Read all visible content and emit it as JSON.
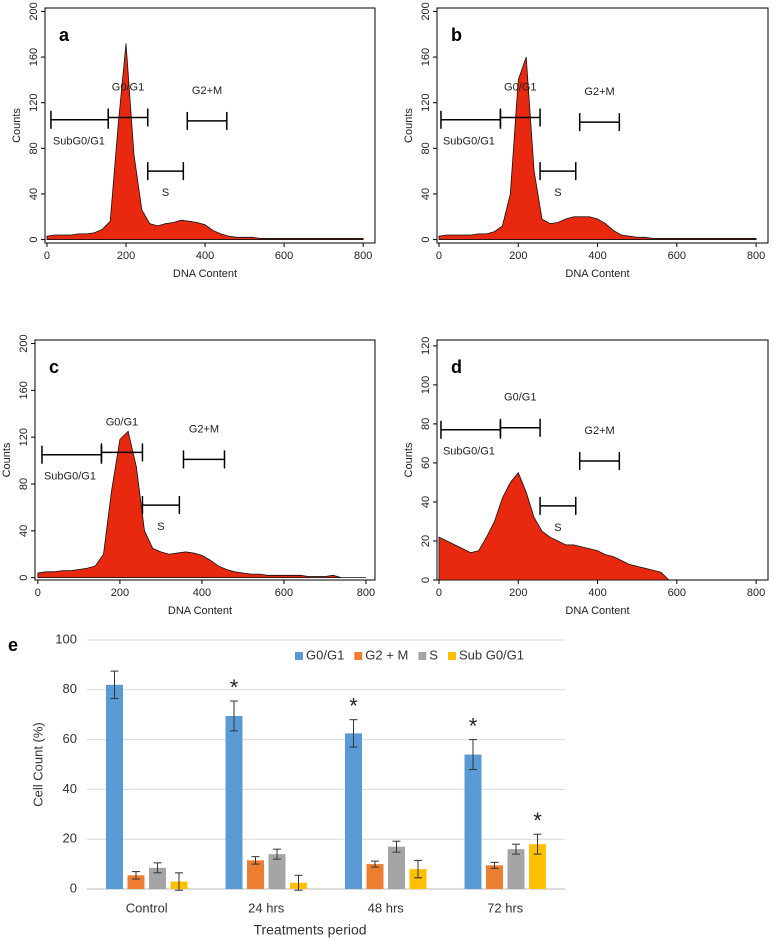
{
  "chart_data": [
    {
      "type": "area",
      "label": "a",
      "x_label": "DNA Content",
      "y_label": "Counts",
      "color": "#e8280f",
      "x": [
        0,
        20,
        40,
        60,
        80,
        100,
        120,
        140,
        160,
        180,
        200,
        220,
        240,
        260,
        280,
        300,
        320,
        340,
        360,
        380,
        400,
        420,
        440,
        460,
        480,
        500,
        520,
        540,
        560,
        580,
        600,
        620,
        640,
        660,
        680,
        700,
        720,
        740,
        760,
        780,
        800
      ],
      "values": [
        3,
        4,
        4,
        4,
        5,
        5,
        6,
        9,
        16,
        100,
        172,
        75,
        26,
        14,
        12,
        14,
        15,
        17,
        16,
        15,
        13,
        8,
        5,
        3,
        2,
        2,
        2,
        1,
        1,
        1,
        1,
        1,
        1,
        1,
        1,
        1,
        1,
        1,
        1,
        1,
        1
      ],
      "xlim": [
        -5,
        830
      ],
      "ylim": [
        -3,
        203
      ],
      "xticks": [
        0,
        200,
        400,
        600,
        800
      ],
      "yticks": [
        0,
        40,
        80,
        120,
        160,
        200
      ],
      "gates": [
        {
          "label": "SubG0/G1",
          "range": [
            10,
            155
          ],
          "level": 105,
          "label_position": "below"
        },
        {
          "label": "G0/G1",
          "range": [
            155,
            255
          ],
          "level": 107,
          "label_position": "above"
        },
        {
          "label": "S",
          "range": [
            255,
            345
          ],
          "level": 60,
          "label_position": "below"
        },
        {
          "label": "G2+M",
          "range": [
            355,
            455
          ],
          "level": 104,
          "label_position": "above"
        }
      ]
    },
    {
      "type": "area",
      "label": "b",
      "x_label": "DNA Content",
      "y_label": "Counts",
      "color": "#e8280f",
      "x": [
        0,
        20,
        40,
        60,
        80,
        100,
        120,
        140,
        160,
        180,
        200,
        220,
        240,
        260,
        280,
        300,
        320,
        340,
        360,
        380,
        400,
        420,
        440,
        460,
        480,
        500,
        520,
        540,
        560,
        580,
        600,
        620,
        640,
        660,
        680,
        700,
        720,
        740,
        760,
        780,
        800
      ],
      "values": [
        3,
        4,
        4,
        4,
        4,
        5,
        5,
        7,
        12,
        40,
        140,
        160,
        60,
        18,
        14,
        15,
        18,
        20,
        20,
        20,
        18,
        14,
        8,
        4,
        3,
        2,
        2,
        1,
        1,
        1,
        1,
        1,
        1,
        1,
        1,
        1,
        1,
        1,
        1,
        1,
        1
      ],
      "xlim": [
        -5,
        830
      ],
      "ylim": [
        -3,
        203
      ],
      "xticks": [
        0,
        200,
        400,
        600,
        800
      ],
      "yticks": [
        0,
        40,
        80,
        120,
        160,
        200
      ],
      "gates": [
        {
          "label": "SubG0/G1",
          "range": [
            5,
            155
          ],
          "level": 105,
          "label_position": "below"
        },
        {
          "label": "G0/G1",
          "range": [
            155,
            255
          ],
          "level": 107,
          "label_position": "above"
        },
        {
          "label": "S",
          "range": [
            255,
            345
          ],
          "level": 60,
          "label_position": "below"
        },
        {
          "label": "G2+M",
          "range": [
            355,
            455
          ],
          "level": 103,
          "label_position": "above"
        }
      ]
    },
    {
      "type": "area",
      "label": "c",
      "x_label": "DNA Content",
      "y_label": "Counts",
      "color": "#e8280f",
      "x": [
        0,
        20,
        40,
        60,
        80,
        100,
        120,
        140,
        160,
        180,
        200,
        220,
        240,
        260,
        280,
        300,
        320,
        340,
        360,
        380,
        400,
        420,
        440,
        460,
        480,
        500,
        520,
        540,
        560,
        580,
        600,
        620,
        640,
        660,
        680,
        700,
        720,
        740,
        760,
        780,
        800
      ],
      "values": [
        4,
        5,
        5,
        6,
        6,
        7,
        8,
        10,
        20,
        75,
        118,
        125,
        95,
        40,
        25,
        22,
        20,
        21,
        22,
        21,
        19,
        15,
        10,
        7,
        5,
        4,
        3,
        3,
        2,
        2,
        2,
        2,
        2,
        1,
        1,
        1,
        2,
        0,
        0,
        0,
        0
      ],
      "xlim": [
        -7,
        822
      ],
      "ylim": [
        -2,
        203
      ],
      "xticks": [
        0,
        200,
        400,
        600,
        800
      ],
      "yticks": [
        0,
        40,
        80,
        120,
        160,
        200
      ],
      "gates": [
        {
          "label": "SubG0/G1",
          "range": [
            10,
            155
          ],
          "level": 105,
          "label_position": "below"
        },
        {
          "label": "G0/G1",
          "range": [
            155,
            255
          ],
          "level": 107,
          "label_position": "above"
        },
        {
          "label": "S",
          "range": [
            255,
            345
          ],
          "level": 62,
          "label_position": "below"
        },
        {
          "label": "G2+M",
          "range": [
            355,
            455
          ],
          "level": 101,
          "label_position": "above"
        }
      ]
    },
    {
      "type": "area",
      "label": "d",
      "x_label": "DNA Content",
      "y_label": "Counts",
      "color": "#e8280f",
      "x": [
        0,
        20,
        40,
        60,
        80,
        100,
        120,
        140,
        160,
        180,
        200,
        220,
        240,
        260,
        280,
        300,
        320,
        340,
        360,
        380,
        400,
        420,
        440,
        460,
        480,
        500,
        520,
        540,
        560,
        580
      ],
      "values": [
        22,
        20,
        18,
        16,
        14,
        15,
        22,
        30,
        42,
        50,
        55,
        45,
        32,
        25,
        22,
        20,
        18,
        18,
        17,
        16,
        15,
        13,
        12,
        10,
        8,
        7,
        6,
        5,
        4,
        0
      ],
      "xlim": [
        -5,
        830
      ],
      "ylim": [
        0,
        123
      ],
      "xticks": [
        0,
        200,
        400,
        600,
        800
      ],
      "yticks": [
        0,
        20,
        40,
        60,
        80,
        100,
        120
      ],
      "gates": [
        {
          "label": "SubG0/G1",
          "range": [
            5,
            155
          ],
          "level": 77,
          "label_position": "below"
        },
        {
          "label": "G0/G1",
          "range": [
            155,
            255
          ],
          "level": 78,
          "label_position": "above"
        },
        {
          "label": "S",
          "range": [
            255,
            345
          ],
          "level": 38,
          "label_position": "below"
        },
        {
          "label": "G2+M",
          "range": [
            355,
            455
          ],
          "level": 61,
          "label_position": "above"
        }
      ]
    },
    {
      "type": "bar",
      "label": "e",
      "x_label": "Treatments period",
      "y_label": "Cell Count (%)",
      "categories": [
        "Control",
        "24 hrs",
        "48 hrs",
        "72 hrs"
      ],
      "series": [
        {
          "name": "G0/G1",
          "color": "#5b9bd5",
          "values": [
            82,
            69.5,
            62.5,
            54
          ],
          "errors": [
            5.5,
            6,
            5.5,
            6
          ],
          "markers": [
            null,
            "*",
            "*",
            "*"
          ]
        },
        {
          "name": "G2 + M",
          "color": "#ed7d31",
          "values": [
            5.5,
            11.5,
            10,
            9.5
          ],
          "errors": [
            1.5,
            1.5,
            1.2,
            1.2
          ],
          "markers": [
            null,
            null,
            null,
            null
          ]
        },
        {
          "name": "S",
          "color": "#a5a5a5",
          "values": [
            8.5,
            14,
            17,
            16
          ],
          "errors": [
            2,
            2,
            2.2,
            2
          ],
          "markers": [
            null,
            null,
            null,
            null
          ]
        },
        {
          "name": "Sub G0/G1",
          "color": "#ffc000",
          "values": [
            3,
            2.5,
            8,
            18
          ],
          "errors": [
            3.5,
            3,
            3.5,
            4
          ],
          "markers": [
            null,
            null,
            null,
            "*"
          ]
        }
      ],
      "ylim": [
        0,
        100
      ],
      "yticks": [
        0,
        20,
        40,
        60,
        80,
        100
      ],
      "grid": true,
      "legend": "top-right"
    }
  ]
}
